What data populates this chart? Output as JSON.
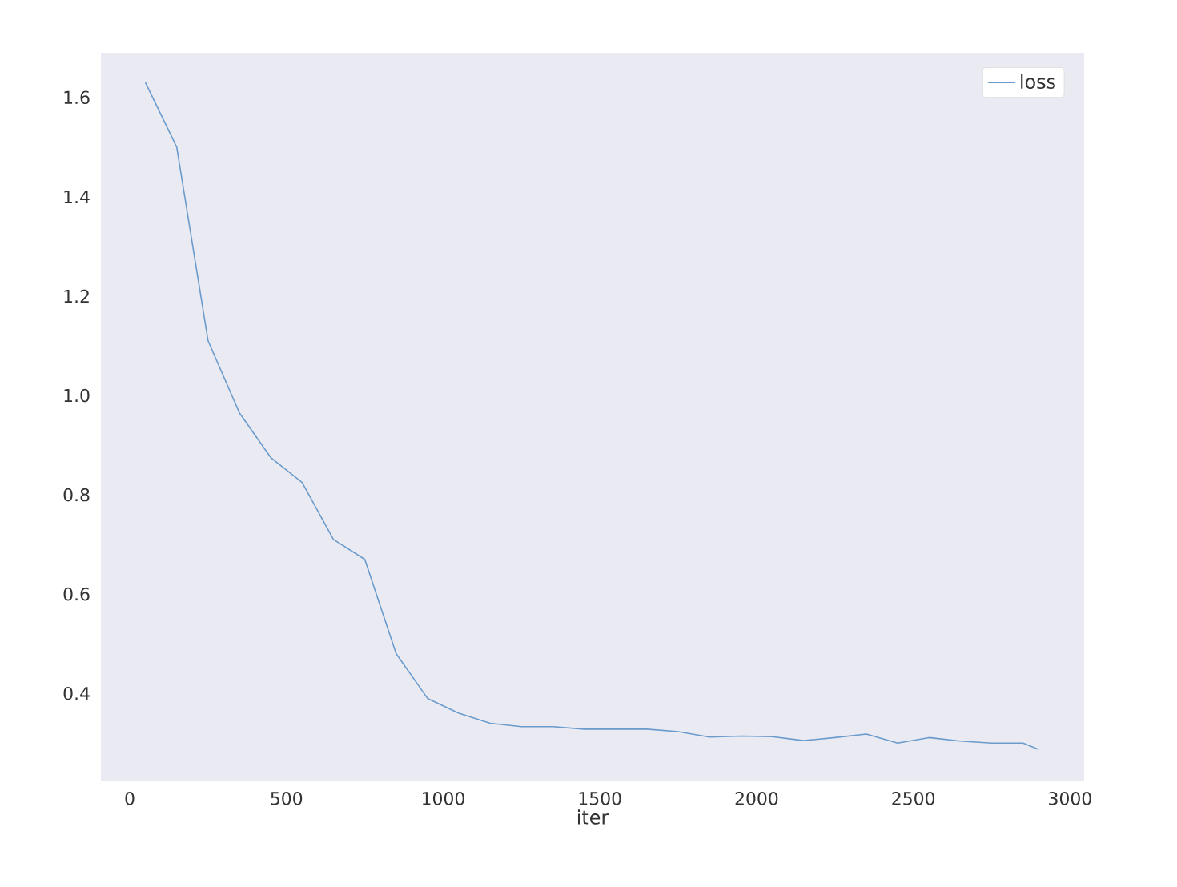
{
  "chart_data": {
    "type": "line",
    "xlabel": "iter",
    "x": [
      50,
      150,
      250,
      350,
      450,
      550,
      650,
      750,
      850,
      950,
      1050,
      1150,
      1250,
      1350,
      1450,
      1550,
      1650,
      1750,
      1850,
      1950,
      2050,
      2150,
      2250,
      2350,
      2450,
      2550,
      2650,
      2750,
      2850,
      2900
    ],
    "series": [
      {
        "name": "loss",
        "color": "#6a9bcc",
        "values": [
          1.63,
          1.5,
          1.11,
          0.965,
          0.875,
          0.825,
          0.71,
          0.67,
          0.48,
          0.39,
          0.36,
          0.34,
          0.333,
          0.333,
          0.328,
          0.328,
          0.328,
          0.323,
          0.312,
          0.314,
          0.313,
          0.305,
          0.311,
          0.318,
          0.3,
          0.311,
          0.304,
          0.3,
          0.3,
          0.287
        ]
      }
    ],
    "xlim": [
      -92,
      3045
    ],
    "ylim": [
      0.223,
      1.69
    ],
    "xticks": [
      0,
      500,
      1000,
      1500,
      2000,
      2500,
      3000
    ],
    "yticks": [
      {
        "value": 0.4,
        "label": "0.4"
      },
      {
        "value": 0.6,
        "label": "0.6"
      },
      {
        "value": 0.8,
        "label": "0.8"
      },
      {
        "value": 1.0,
        "label": "1.0"
      },
      {
        "value": 1.2,
        "label": "1.2"
      },
      {
        "value": 1.4,
        "label": "1.4"
      },
      {
        "value": 1.6,
        "label": "1.6"
      }
    ],
    "grid": false,
    "legend": "top right",
    "marker": "none",
    "line_style": "solid"
  }
}
